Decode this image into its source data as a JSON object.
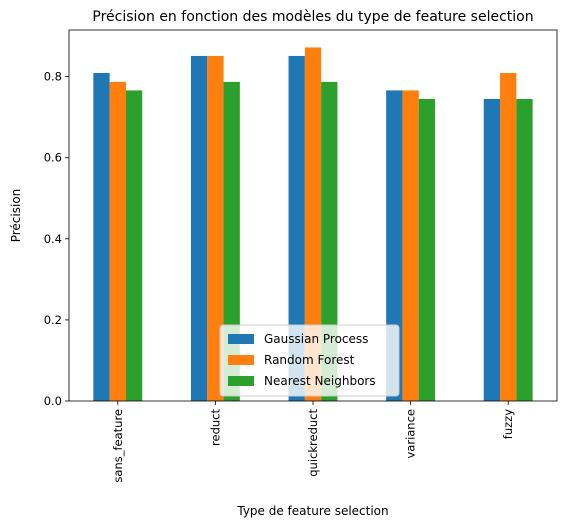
{
  "chart_data": {
    "type": "bar",
    "title": "Précision en fonction des modèles du type de feature selection",
    "xlabel": "Type de feature selection",
    "ylabel": "Précision",
    "categories": [
      "sans_feature",
      "reduct",
      "quickreduct",
      "variance",
      "fuzzy"
    ],
    "series": [
      {
        "name": "Gaussian Process",
        "color": "#1f77b4",
        "values": [
          0.809,
          0.851,
          0.851,
          0.766,
          0.745
        ]
      },
      {
        "name": "Random Forest",
        "color": "#ff7f0e",
        "values": [
          0.787,
          0.851,
          0.872,
          0.766,
          0.809
        ]
      },
      {
        "name": "Nearest Neighbors",
        "color": "#2ca02c",
        "values": [
          0.766,
          0.787,
          0.787,
          0.745,
          0.745
        ]
      }
    ],
    "ylim": [
      0,
      0.915
    ],
    "yticks": [
      0.0,
      0.2,
      0.4,
      0.6,
      0.8
    ],
    "ytick_labels": [
      "0.0",
      "0.2",
      "0.4",
      "0.6",
      "0.8"
    ],
    "grid": false,
    "legend_position": "lower-center"
  }
}
